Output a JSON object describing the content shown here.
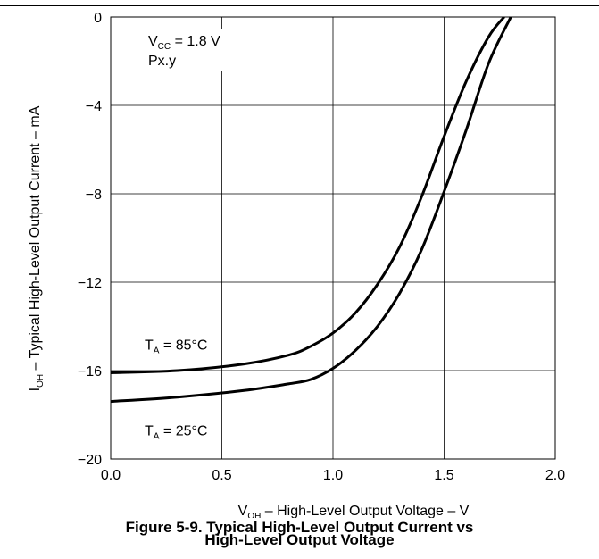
{
  "figure": {
    "caption_line1": "Figure 5-9. Typical High-Level Output Current vs",
    "caption_line2": "High-Level Output Voltage"
  },
  "chart_data": {
    "type": "line",
    "xlabel": {
      "main": "V",
      "sub": "OH",
      "rest": " – High-Level Output Voltage – V"
    },
    "ylabel": {
      "main": "I",
      "sub": "OH",
      "rest": " – Typical High-Level Output Current – mA"
    },
    "xlim": [
      0,
      2
    ],
    "ylim": [
      -20,
      0
    ],
    "x_ticks": [
      0,
      0.5,
      1,
      1.5,
      2
    ],
    "x_tick_labels": [
      "0.0",
      "0.5",
      "1.0",
      "1.5",
      "2.0"
    ],
    "y_ticks": [
      0,
      -4,
      -8,
      -12,
      -16,
      -20
    ],
    "y_tick_labels": [
      "0",
      "−4",
      "−8",
      "−12",
      "−16",
      "−20"
    ],
    "grid": true,
    "conditions": {
      "line1": {
        "main": "V",
        "sub": "CC",
        "rest": " = 1.8 V"
      },
      "line2": "Px.y"
    },
    "series": [
      {
        "name": {
          "main": "T",
          "sub": "A",
          "rest": " = 85°C"
        },
        "x": [
          0,
          0.3,
          0.6,
          0.8,
          0.9,
          1.0,
          1.1,
          1.2,
          1.3,
          1.4,
          1.5,
          1.6,
          1.7,
          1.77
        ],
        "y": [
          -16.1,
          -16.0,
          -15.7,
          -15.3,
          -14.9,
          -14.3,
          -13.4,
          -12.1,
          -10.4,
          -8.1,
          -5.4,
          -2.9,
          -0.9,
          0
        ]
      },
      {
        "name": {
          "main": "T",
          "sub": "A",
          "rest": " = 25°C"
        },
        "x": [
          0,
          0.3,
          0.6,
          0.8,
          0.9,
          1.0,
          1.1,
          1.2,
          1.3,
          1.4,
          1.5,
          1.6,
          1.7,
          1.8
        ],
        "y": [
          -17.4,
          -17.2,
          -16.9,
          -16.6,
          -16.4,
          -15.9,
          -15.1,
          -14.0,
          -12.5,
          -10.5,
          -7.9,
          -5.1,
          -2.1,
          0
        ]
      }
    ]
  }
}
